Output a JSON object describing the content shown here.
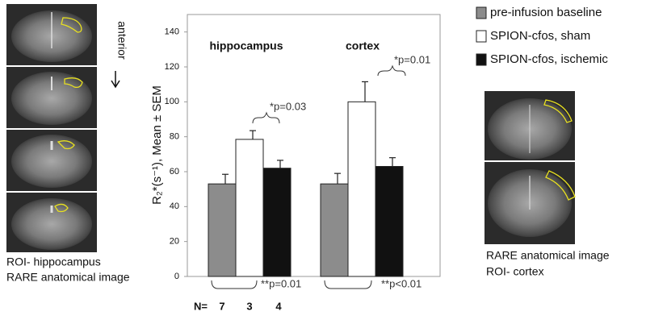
{
  "chart_data": {
    "type": "bar",
    "y_label": "R₂*(s⁻¹), Mean ± SEM",
    "categories": [
      "hippocampus",
      "cortex"
    ],
    "series": [
      {
        "name": "pre-infusion baseline",
        "color": "#8c8c8c",
        "values": [
          53,
          53
        ],
        "errors": [
          5.5,
          6
        ]
      },
      {
        "name": "SPION-cfos, sham",
        "color": "#ffffff",
        "values": [
          78.5,
          100
        ],
        "errors": [
          5,
          11.5
        ]
      },
      {
        "name": "SPION-cfos, ischemic",
        "color": "#111111",
        "values": [
          62,
          63
        ],
        "errors": [
          4.5,
          5
        ]
      }
    ],
    "ylim": [
      0,
      150
    ],
    "yticks": [
      0,
      20,
      40,
      60,
      80,
      100,
      120,
      140
    ],
    "annotations": [
      "*p=0.03",
      "*p=0.01",
      "**p=0.01",
      "**p<0.01"
    ],
    "n_label": "N=",
    "n_values": [
      7,
      3,
      4
    ]
  },
  "left_panel": {
    "arrow_label": "anterior",
    "caption": [
      "ROI- hippocampus",
      "RARE anatomical image"
    ]
  },
  "right_panel": {
    "caption": [
      "RARE anatomical image",
      "ROI- cortex"
    ]
  }
}
